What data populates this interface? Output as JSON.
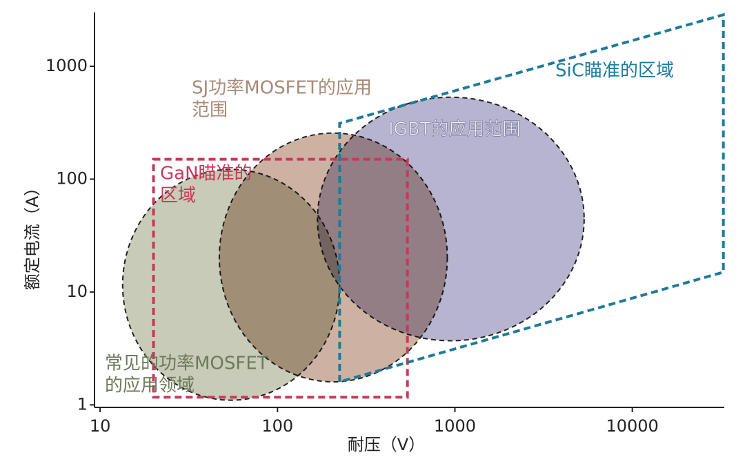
{
  "chart_data": {
    "type": "region",
    "x_label": "耐压（V）",
    "y_label": "额定电流（A）",
    "log_x": true,
    "log_y": true,
    "xlim": [
      9.3,
      33000
    ],
    "ylim": [
      0.95,
      3000
    ],
    "xticks": [
      10,
      100,
      1000,
      10000
    ],
    "yticks": [
      1,
      10,
      100,
      1000
    ],
    "regions": [
      {
        "shape": "ellipse",
        "label": [
          "常见的功率MOSFET",
          "的应用领域"
        ],
        "color": "#c8cbb7",
        "label_color": "#6c7a5a",
        "xlim": [
          13.4,
          224
        ],
        "ylim": [
          1.1,
          122
        ]
      },
      {
        "shape": "ellipse",
        "label": [
          "SJ功率MOSFET的应用",
          "范围"
        ],
        "color": "#cdb2a4",
        "label_color": "#a88a78",
        "xlim": [
          47,
          906
        ],
        "ylim": [
          1.6,
          256
        ]
      },
      {
        "shape": "ellipse",
        "label": [
          "IGBT的应用范围"
        ],
        "color": "#b7b4d0",
        "label_color": "#f4f3fa",
        "xlim": [
          168,
          5350
        ],
        "ylim": [
          3.7,
          532
        ]
      },
      {
        "shape": "rect",
        "label": [
          "GaN瞄准的",
          "区域"
        ],
        "color": "#c8385a",
        "label_color": "#c8385a",
        "xlim": [
          20,
          540
        ],
        "ylim": [
          1.17,
          150
        ]
      },
      {
        "shape": "polygon",
        "label": [
          "SiC瞄准的区域"
        ],
        "color": "#1f7a9a",
        "label_color": "#1f7a9a",
        "x": [
          224,
          224,
          32600,
          32600
        ],
        "y": [
          1.6,
          312,
          2860,
          15
        ]
      }
    ]
  }
}
